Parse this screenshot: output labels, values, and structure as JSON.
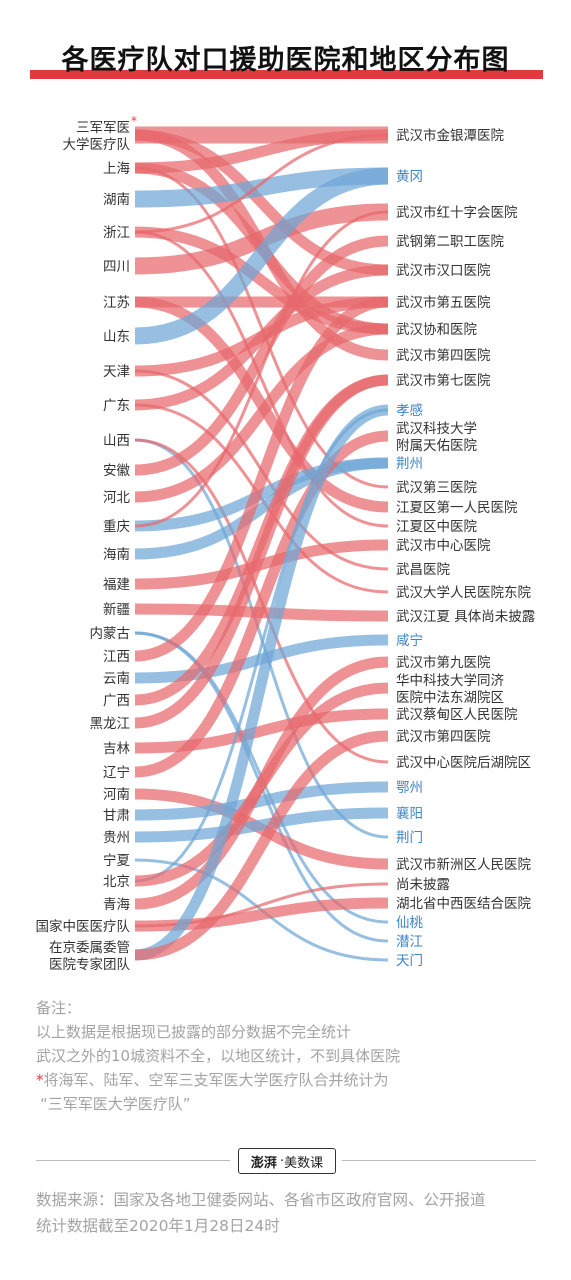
{
  "title": "各医疗队对口援助医院和地区分布图",
  "colors": {
    "province_flow": "#e8686c",
    "region_flow": "#6fa6d6",
    "text_dark": "#333333",
    "text_blue": "#3d85c6",
    "accent": "#e0393e"
  },
  "sources": [
    {
      "id": "s0",
      "lines": [
        "三军军医",
        "大学医疗队"
      ],
      "star": "*"
    },
    {
      "id": "s1",
      "lines": [
        "上海"
      ]
    },
    {
      "id": "s2",
      "lines": [
        "湖南"
      ]
    },
    {
      "id": "s3",
      "lines": [
        "浙江"
      ]
    },
    {
      "id": "s4",
      "lines": [
        "四川"
      ]
    },
    {
      "id": "s5",
      "lines": [
        "江苏"
      ]
    },
    {
      "id": "s6",
      "lines": [
        "山东"
      ]
    },
    {
      "id": "s7",
      "lines": [
        "天津"
      ]
    },
    {
      "id": "s8",
      "lines": [
        "广东"
      ]
    },
    {
      "id": "s9",
      "lines": [
        "山西"
      ]
    },
    {
      "id": "s10",
      "lines": [
        "安徽"
      ]
    },
    {
      "id": "s11",
      "lines": [
        "河北"
      ]
    },
    {
      "id": "s12",
      "lines": [
        "重庆"
      ]
    },
    {
      "id": "s13",
      "lines": [
        "海南"
      ]
    },
    {
      "id": "s14",
      "lines": [
        "福建"
      ]
    },
    {
      "id": "s15",
      "lines": [
        "新疆"
      ]
    },
    {
      "id": "s16",
      "lines": [
        "内蒙古"
      ]
    },
    {
      "id": "s17",
      "lines": [
        "江西"
      ]
    },
    {
      "id": "s18",
      "lines": [
        "云南"
      ]
    },
    {
      "id": "s19",
      "lines": [
        "广西"
      ]
    },
    {
      "id": "s20",
      "lines": [
        "黑龙江"
      ]
    },
    {
      "id": "s21",
      "lines": [
        "吉林"
      ]
    },
    {
      "id": "s22",
      "lines": [
        "辽宁"
      ]
    },
    {
      "id": "s23",
      "lines": [
        "河南"
      ]
    },
    {
      "id": "s24",
      "lines": [
        "甘肃"
      ]
    },
    {
      "id": "s25",
      "lines": [
        "贵州"
      ]
    },
    {
      "id": "s26",
      "lines": [
        "宁夏"
      ]
    },
    {
      "id": "s27",
      "lines": [
        "北京"
      ]
    },
    {
      "id": "s28",
      "lines": [
        "青海"
      ]
    },
    {
      "id": "s29",
      "lines": [
        "国家中医医疗队"
      ]
    },
    {
      "id": "s30",
      "lines": [
        "在京委属委管",
        "医院专家团队"
      ]
    }
  ],
  "targets": [
    {
      "id": "t0",
      "lines": [
        "武汉市金银潭医院"
      ],
      "kind": "hospital"
    },
    {
      "id": "t1",
      "lines": [
        "黄冈"
      ],
      "kind": "region"
    },
    {
      "id": "t2",
      "lines": [
        "武汉市红十字会医院"
      ],
      "kind": "hospital"
    },
    {
      "id": "t3",
      "lines": [
        "武钢第二职工医院"
      ],
      "kind": "hospital"
    },
    {
      "id": "t4",
      "lines": [
        "武汉市汉口医院"
      ],
      "kind": "hospital"
    },
    {
      "id": "t5",
      "lines": [
        "武汉市第五医院"
      ],
      "kind": "hospital"
    },
    {
      "id": "t6",
      "lines": [
        "武汉协和医院"
      ],
      "kind": "hospital"
    },
    {
      "id": "t7",
      "lines": [
        "武汉市第四医院"
      ],
      "kind": "hospital"
    },
    {
      "id": "t8",
      "lines": [
        "武汉市第七医院"
      ],
      "kind": "hospital"
    },
    {
      "id": "t9",
      "lines": [
        "孝感"
      ],
      "kind": "region"
    },
    {
      "id": "t10",
      "lines": [
        "武汉科技大学",
        "附属天佑医院"
      ],
      "kind": "hospital"
    },
    {
      "id": "t11",
      "lines": [
        "荆州"
      ],
      "kind": "region"
    },
    {
      "id": "t12",
      "lines": [
        "武汉第三医院"
      ],
      "kind": "hospital"
    },
    {
      "id": "t13",
      "lines": [
        "江夏区第一人民医院"
      ],
      "kind": "hospital"
    },
    {
      "id": "t14",
      "lines": [
        "江夏区中医院"
      ],
      "kind": "hospital"
    },
    {
      "id": "t15",
      "lines": [
        "武汉市中心医院"
      ],
      "kind": "hospital"
    },
    {
      "id": "t16",
      "lines": [
        "武昌医院"
      ],
      "kind": "hospital"
    },
    {
      "id": "t17",
      "lines": [
        "武汉大学人民医院东院"
      ],
      "kind": "hospital"
    },
    {
      "id": "t18",
      "lines": [
        "武汉江夏 具体尚未披露"
      ],
      "kind": "hospital"
    },
    {
      "id": "t19",
      "lines": [
        "咸宁"
      ],
      "kind": "region"
    },
    {
      "id": "t20",
      "lines": [
        "武汉市第九医院"
      ],
      "kind": "hospital"
    },
    {
      "id": "t21",
      "lines": [
        "华中科技大学同济",
        "医院中法东湖院区"
      ],
      "kind": "hospital"
    },
    {
      "id": "t22",
      "lines": [
        "武汉蔡甸区人民医院"
      ],
      "kind": "hospital"
    },
    {
      "id": "t23",
      "lines": [
        "武汉市第四医院"
      ],
      "kind": "hospital"
    },
    {
      "id": "t24",
      "lines": [
        "武汉中心医院后湖院区"
      ],
      "kind": "hospital"
    },
    {
      "id": "t25",
      "lines": [
        "鄂州"
      ],
      "kind": "region"
    },
    {
      "id": "t26",
      "lines": [
        "襄阳"
      ],
      "kind": "region"
    },
    {
      "id": "t27",
      "lines": [
        "荆门"
      ],
      "kind": "region"
    },
    {
      "id": "t28",
      "lines": [
        "武汉市新洲区人民医院"
      ],
      "kind": "hospital"
    },
    {
      "id": "t29",
      "lines": [
        "尚未披露"
      ],
      "kind": "hospital"
    },
    {
      "id": "t30",
      "lines": [
        "湖北省中西医结合医院"
      ],
      "kind": "hospital"
    },
    {
      "id": "t31",
      "lines": [
        "仙桃"
      ],
      "kind": "region"
    },
    {
      "id": "t32",
      "lines": [
        "潜江"
      ],
      "kind": "region"
    },
    {
      "id": "t33",
      "lines": [
        "天门"
      ],
      "kind": "region"
    }
  ],
  "flows": [
    {
      "from": "s0",
      "to": "t0",
      "weight": 3
    },
    {
      "from": "s0",
      "to": "t4",
      "weight": 2
    },
    {
      "from": "s0",
      "to": "t7",
      "weight": 2
    },
    {
      "from": "s1",
      "to": "t0",
      "weight": 2
    },
    {
      "from": "s1",
      "to": "t6",
      "weight": 2
    },
    {
      "from": "s1",
      "to": "t12",
      "weight": 1
    },
    {
      "from": "s2",
      "to": "t1",
      "weight": 3
    },
    {
      "from": "s3",
      "to": "t0",
      "weight": 1
    },
    {
      "from": "s3",
      "to": "t6",
      "weight": 2
    },
    {
      "from": "s3",
      "to": "t14",
      "weight": 1
    },
    {
      "from": "s4",
      "to": "t2",
      "weight": 3
    },
    {
      "from": "s5",
      "to": "t5",
      "weight": 2
    },
    {
      "from": "s5",
      "to": "t13",
      "weight": 2
    },
    {
      "from": "s6",
      "to": "t1",
      "weight": 3
    },
    {
      "from": "s7",
      "to": "t5",
      "weight": 2
    },
    {
      "from": "s7",
      "to": "t16",
      "weight": 1
    },
    {
      "from": "s8",
      "to": "t4",
      "weight": 2
    },
    {
      "from": "s8",
      "to": "t17",
      "weight": 1
    },
    {
      "from": "s9",
      "to": "t27",
      "weight": 1
    },
    {
      "from": "s9",
      "to": "t24",
      "weight": 1
    },
    {
      "from": "s10",
      "to": "t3",
      "weight": 2
    },
    {
      "from": "s11",
      "to": "t6",
      "weight": 2
    },
    {
      "from": "s12",
      "to": "t11",
      "weight": 2
    },
    {
      "from": "s12",
      "to": "t2",
      "weight": 1
    },
    {
      "from": "s13",
      "to": "t11",
      "weight": 2
    },
    {
      "from": "s14",
      "to": "t15",
      "weight": 2
    },
    {
      "from": "s15",
      "to": "t18",
      "weight": 2
    },
    {
      "from": "s16",
      "to": "t31",
      "weight": 1
    },
    {
      "from": "s16",
      "to": "t32",
      "weight": 1
    },
    {
      "from": "s17",
      "to": "t5",
      "weight": 2
    },
    {
      "from": "s18",
      "to": "t19",
      "weight": 2
    },
    {
      "from": "s19",
      "to": "t8",
      "weight": 2
    },
    {
      "from": "s20",
      "to": "t8",
      "weight": 2
    },
    {
      "from": "s21",
      "to": "t22",
      "weight": 2
    },
    {
      "from": "s22",
      "to": "t10",
      "weight": 2
    },
    {
      "from": "s23",
      "to": "t28",
      "weight": 2
    },
    {
      "from": "s24",
      "to": "t25",
      "weight": 2
    },
    {
      "from": "s25",
      "to": "t26",
      "weight": 2
    },
    {
      "from": "s26",
      "to": "t33",
      "weight": 1
    },
    {
      "from": "s27",
      "to": "t9",
      "weight": 1
    },
    {
      "from": "s27",
      "to": "t21",
      "weight": 2
    },
    {
      "from": "s28",
      "to": "t20",
      "weight": 2
    },
    {
      "from": "s29",
      "to": "t30",
      "weight": 2
    },
    {
      "from": "s29",
      "to": "t29",
      "weight": 1
    },
    {
      "from": "s30",
      "to": "t9",
      "weight": 2
    },
    {
      "from": "s30",
      "to": "t23",
      "weight": 2
    }
  ],
  "notes": {
    "heading": "备注：",
    "line1": "以上数据是根据现已披露的部分数据不完全统计",
    "line2": "武汉之外的10城资料不全，以地区统计，不到具体医院",
    "star": "*",
    "line3": "将海军、陆军、空军三支军医大学医疗队合并统计为",
    "line4": "“三军军医大学医疗队”"
  },
  "logo": {
    "mark": "澎湃",
    "dot": "·",
    "name": "美数课"
  },
  "source": {
    "line1": "数据来源：国家及各地卫健委网站、各省市区政府官网、公开报道",
    "line2": "统计数据截至2020年1月28日24时"
  }
}
